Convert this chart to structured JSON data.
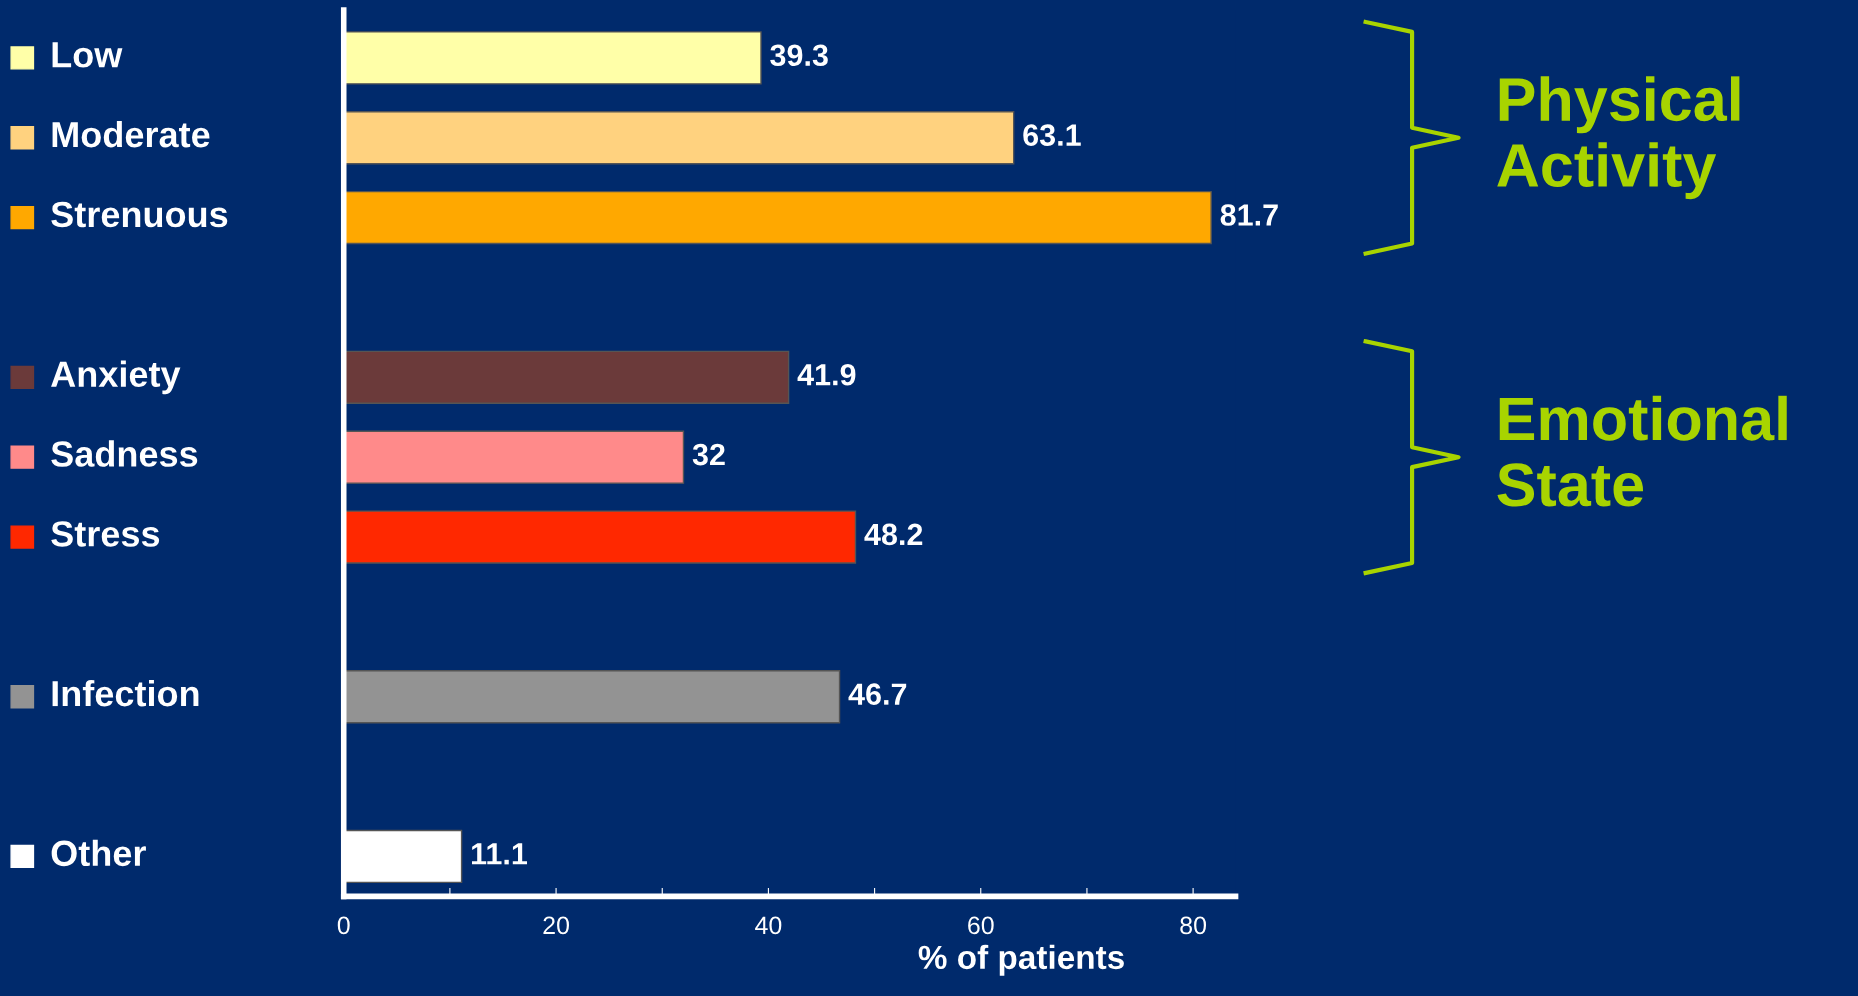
{
  "chart_data": {
    "type": "bar",
    "orientation": "horizontal",
    "categories": [
      "Low",
      "Moderate",
      "Strenuous",
      null,
      "Anxiety",
      "Sadness",
      "Stress",
      null,
      "Infection",
      null,
      "Other"
    ],
    "values": [
      39.3,
      63.1,
      81.7,
      null,
      41.9,
      32,
      48.2,
      null,
      46.7,
      null,
      11.1
    ],
    "colors": [
      "#ffffa8",
      "#ffd27f",
      "#ffa800",
      "#002a6c",
      "#6b3a3a",
      "#ff8a8a",
      "#ff2800",
      "#002a6c",
      "#939393",
      "#002a6c",
      "#ffffff"
    ],
    "data_labels": true,
    "xlabel": "% of patients",
    "xlim": [
      0,
      84
    ],
    "xticks": [
      0,
      {
        "value": 10,
        "label": null
      },
      20,
      {
        "value": 30,
        "label": null
      },
      40,
      {
        "value": 50,
        "label": null
      },
      60,
      {
        "value": 70,
        "label": null
      },
      80
    ],
    "annotations": [
      "Physical Activity",
      "Emotional State"
    ],
    "grid": false
  }
}
